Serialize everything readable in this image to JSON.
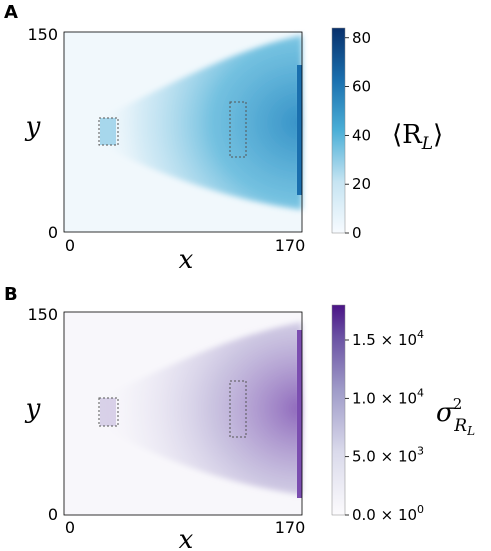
{
  "chart_data": [
    {
      "panel": "A",
      "type": "heatmap",
      "xlabel": "x",
      "ylabel": "y",
      "xlim": [
        0,
        170
      ],
      "ylim": [
        0,
        150
      ],
      "x_tick_labels": [
        "0",
        "170"
      ],
      "y_tick_labels": [
        "0",
        "150"
      ],
      "colorbar": {
        "label": "⟨R_L⟩",
        "label_main": "⟨R",
        "label_sub": "L",
        "label_close": "⟩",
        "range": [
          0,
          84
        ],
        "ticks": [
          0,
          20,
          40,
          60,
          80
        ],
        "tick_labels": [
          "0",
          "20",
          "40",
          "60",
          "80"
        ],
        "color_low": "#f7fbff",
        "color_mid": "#4bafd7",
        "color_high": "#08306b"
      },
      "regions": [
        {
          "name": "source-box",
          "x": [
            30,
            45
          ],
          "y": [
            73,
            98
          ]
        },
        {
          "name": "measure-box",
          "x": [
            130,
            145
          ],
          "y": [
            60,
            110
          ]
        }
      ]
    },
    {
      "panel": "B",
      "type": "heatmap",
      "xlabel": "x",
      "ylabel": "y",
      "xlim": [
        0,
        170
      ],
      "ylim": [
        0,
        150
      ],
      "x_tick_labels": [
        "0",
        "170"
      ],
      "y_tick_labels": [
        "0",
        "150"
      ],
      "colorbar": {
        "label": "σ²_{R_L}",
        "label_main": "σ",
        "label_sup": "2",
        "label_sub_main": "R",
        "label_sub_sub": "L",
        "range": [
          0,
          18000
        ],
        "ticks": [
          0,
          5000,
          10000,
          15000
        ],
        "tick_labels": [
          {
            "mantissa": "0.0 × 10",
            "exp": "0"
          },
          {
            "mantissa": "5.0 × 10",
            "exp": "3"
          },
          {
            "mantissa": "1.0 × 10",
            "exp": "4"
          },
          {
            "mantissa": "1.5 × 10",
            "exp": "4"
          }
        ],
        "color_low": "#fcfbfd",
        "color_mid": "#9e9ac8",
        "color_high": "#4a1486"
      },
      "regions": [
        {
          "name": "source-box",
          "x": [
            30,
            45
          ],
          "y": [
            73,
            98
          ]
        },
        {
          "name": "measure-box",
          "x": [
            130,
            145
          ],
          "y": [
            60,
            110
          ]
        }
      ]
    }
  ]
}
